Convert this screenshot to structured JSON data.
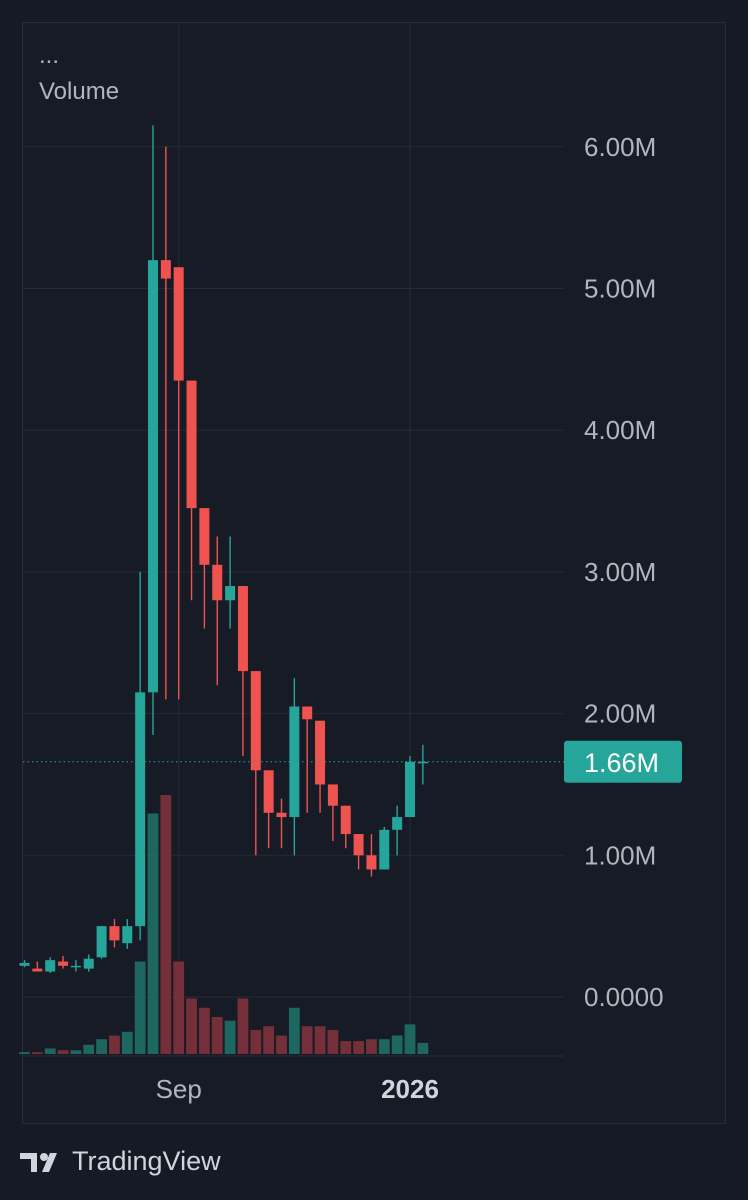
{
  "legend": {
    "ellipsis": "...",
    "label": "Volume"
  },
  "footer": {
    "brand": "TradingView"
  },
  "colors": {
    "up": "#26a69a",
    "down": "#ef5350",
    "background": "#171b26",
    "grid": "#262b36",
    "axis_text": "#b2b5be",
    "price_line": "#26a69a"
  },
  "chart_data": {
    "type": "candlestick",
    "y_ticks": [
      {
        "value": 6000000,
        "label": "6.00M"
      },
      {
        "value": 5000000,
        "label": "5.00M"
      },
      {
        "value": 4000000,
        "label": "4.00M"
      },
      {
        "value": 3000000,
        "label": "3.00M"
      },
      {
        "value": 2000000,
        "label": "2.00M"
      },
      {
        "value": 1000000,
        "label": "1.00M"
      },
      {
        "value": 0,
        "label": "0.0000"
      }
    ],
    "x_ticks": [
      {
        "label": "Sep",
        "index": 12,
        "bold": false
      },
      {
        "label": "2026",
        "index": 30,
        "bold": true
      }
    ],
    "ylim": [
      -350000,
      6800000
    ],
    "last_price": {
      "value": 1660000,
      "label": "1.66M"
    },
    "grid": true,
    "candles": [
      {
        "o": 220000,
        "h": 260000,
        "l": 210000,
        "c": 240000,
        "v": 0.01
      },
      {
        "o": 200000,
        "h": 250000,
        "l": 180000,
        "c": 180000,
        "v": 0.01
      },
      {
        "o": 180000,
        "h": 280000,
        "l": 170000,
        "c": 260000,
        "v": 0.03
      },
      {
        "o": 250000,
        "h": 290000,
        "l": 200000,
        "c": 220000,
        "v": 0.02
      },
      {
        "o": 220000,
        "h": 260000,
        "l": 180000,
        "c": 220000,
        "v": 0.02
      },
      {
        "o": 200000,
        "h": 300000,
        "l": 180000,
        "c": 270000,
        "v": 0.05
      },
      {
        "o": 280000,
        "h": 500000,
        "l": 270000,
        "c": 500000,
        "v": 0.08
      },
      {
        "o": 500000,
        "h": 550000,
        "l": 350000,
        "c": 400000,
        "v": 0.1
      },
      {
        "o": 380000,
        "h": 550000,
        "l": 340000,
        "c": 500000,
        "v": 0.12
      },
      {
        "o": 500000,
        "h": 3000000,
        "l": 400000,
        "c": 2150000,
        "v": 0.5
      },
      {
        "o": 2150000,
        "h": 6150000,
        "l": 1850000,
        "c": 5200000,
        "v": 1.3
      },
      {
        "o": 5200000,
        "h": 6000000,
        "l": 2100000,
        "c": 5070000,
        "v": 1.4
      },
      {
        "o": 5150000,
        "h": 5150000,
        "l": 2100000,
        "c": 4350000,
        "v": 0.5
      },
      {
        "o": 4350000,
        "h": 4350000,
        "l": 2800000,
        "c": 3450000,
        "v": 0.3
      },
      {
        "o": 3450000,
        "h": 3450000,
        "l": 2600000,
        "c": 3050000,
        "v": 0.25
      },
      {
        "o": 3050000,
        "h": 3250000,
        "l": 2200000,
        "c": 2800000,
        "v": 0.2
      },
      {
        "o": 2800000,
        "h": 3250000,
        "l": 2600000,
        "c": 2900000,
        "v": 0.18
      },
      {
        "o": 2900000,
        "h": 2900000,
        "l": 1700000,
        "c": 2300000,
        "v": 0.3
      },
      {
        "o": 2300000,
        "h": 2300000,
        "l": 1000000,
        "c": 1600000,
        "v": 0.13
      },
      {
        "o": 1600000,
        "h": 1600000,
        "l": 1050000,
        "c": 1300000,
        "v": 0.15
      },
      {
        "o": 1300000,
        "h": 1400000,
        "l": 1050000,
        "c": 1270000,
        "v": 0.1
      },
      {
        "o": 1270000,
        "h": 2250000,
        "l": 1000000,
        "c": 2050000,
        "v": 0.25
      },
      {
        "o": 2050000,
        "h": 2050000,
        "l": 1300000,
        "c": 1960000,
        "v": 0.15
      },
      {
        "o": 1950000,
        "h": 1950000,
        "l": 1300000,
        "c": 1500000,
        "v": 0.15
      },
      {
        "o": 1500000,
        "h": 1500000,
        "l": 1100000,
        "c": 1350000,
        "v": 0.13
      },
      {
        "o": 1350000,
        "h": 1350000,
        "l": 1050000,
        "c": 1150000,
        "v": 0.07
      },
      {
        "o": 1150000,
        "h": 1150000,
        "l": 900000,
        "c": 1000000,
        "v": 0.07
      },
      {
        "o": 1000000,
        "h": 1150000,
        "l": 850000,
        "c": 900000,
        "v": 0.08
      },
      {
        "o": 900000,
        "h": 1200000,
        "l": 900000,
        "c": 1180000,
        "v": 0.08
      },
      {
        "o": 1180000,
        "h": 1350000,
        "l": 1000000,
        "c": 1270000,
        "v": 0.1
      },
      {
        "o": 1270000,
        "h": 1700000,
        "l": 1270000,
        "c": 1660000,
        "v": 0.16
      },
      {
        "o": 1660000,
        "h": 1780000,
        "l": 1500000,
        "c": 1660000,
        "v": 0.06
      }
    ]
  }
}
